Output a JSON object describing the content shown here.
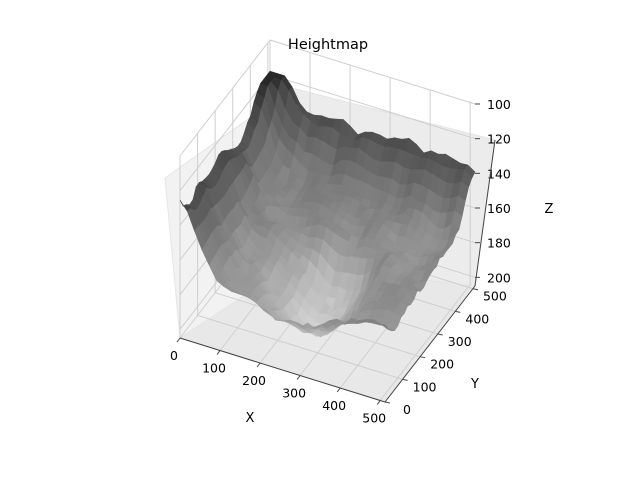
{
  "chart_data": {
    "type": "surface",
    "title": "Heightmap",
    "xlabel": "X",
    "ylabel": "Y",
    "zlabel": "Z",
    "xlim": [
      0,
      512
    ],
    "ylim": [
      0,
      512
    ],
    "zlim": [
      100,
      205
    ],
    "z_inverted": true,
    "x_ticks": [
      0,
      100,
      200,
      300,
      400,
      500
    ],
    "y_ticks": [
      0,
      100,
      200,
      300,
      400,
      500
    ],
    "z_ticks": [
      100,
      120,
      140,
      160,
      180,
      200
    ],
    "colormap": "gray",
    "grid": true,
    "pane_color": "#f2f2f2",
    "surface_description": "terrain heightmap: high ridges along the left (low X) edge and along the far (high Y) edge, with a deep valley/depression in the center-front region",
    "z_range_observed": [
      120,
      200
    ]
  }
}
